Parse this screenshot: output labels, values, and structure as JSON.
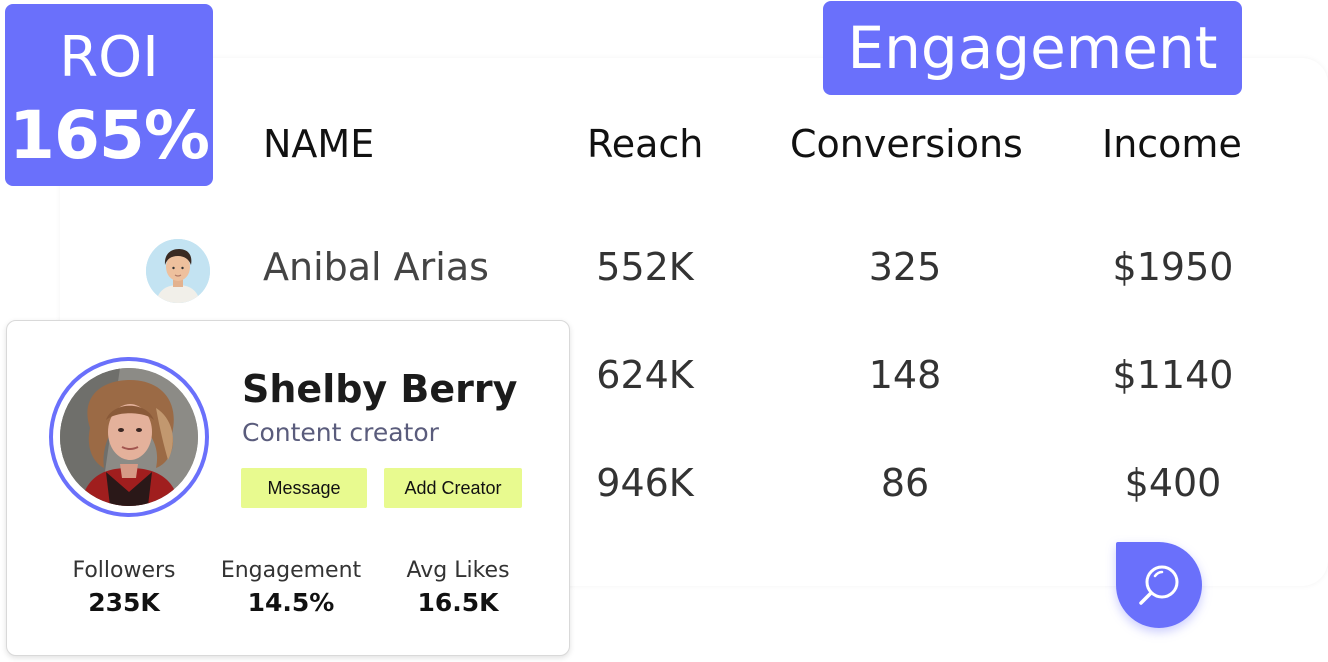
{
  "roi": {
    "label": "ROI",
    "value": "165%"
  },
  "engagement_tab": "Engagement",
  "table": {
    "headers": [
      "NAME",
      "Reach",
      "Conversions",
      "Income"
    ],
    "rows": [
      {
        "name": "Anibal Arias",
        "reach": "552K",
        "conversions": "325",
        "income": "$1950"
      },
      {
        "name": "",
        "reach": "624K",
        "conversions": "148",
        "income": "$1140"
      },
      {
        "name": "",
        "reach": "946K",
        "conversions": "86",
        "income": "$400"
      }
    ]
  },
  "profile": {
    "name": "Shelby Berry",
    "role": "Content creator",
    "message_label": "Message",
    "add_label": "Add Creator",
    "stats": [
      {
        "label": "Followers",
        "value": "235K"
      },
      {
        "label": "Engagement",
        "value": "14.5%"
      },
      {
        "label": "Avg Likes",
        "value": "16.5K"
      }
    ]
  },
  "icons": {
    "search_button": "search-icon"
  },
  "colors": {
    "accent": "#6a70fb",
    "pill": "#e8fa8f",
    "role_text": "#5a5c7c"
  }
}
